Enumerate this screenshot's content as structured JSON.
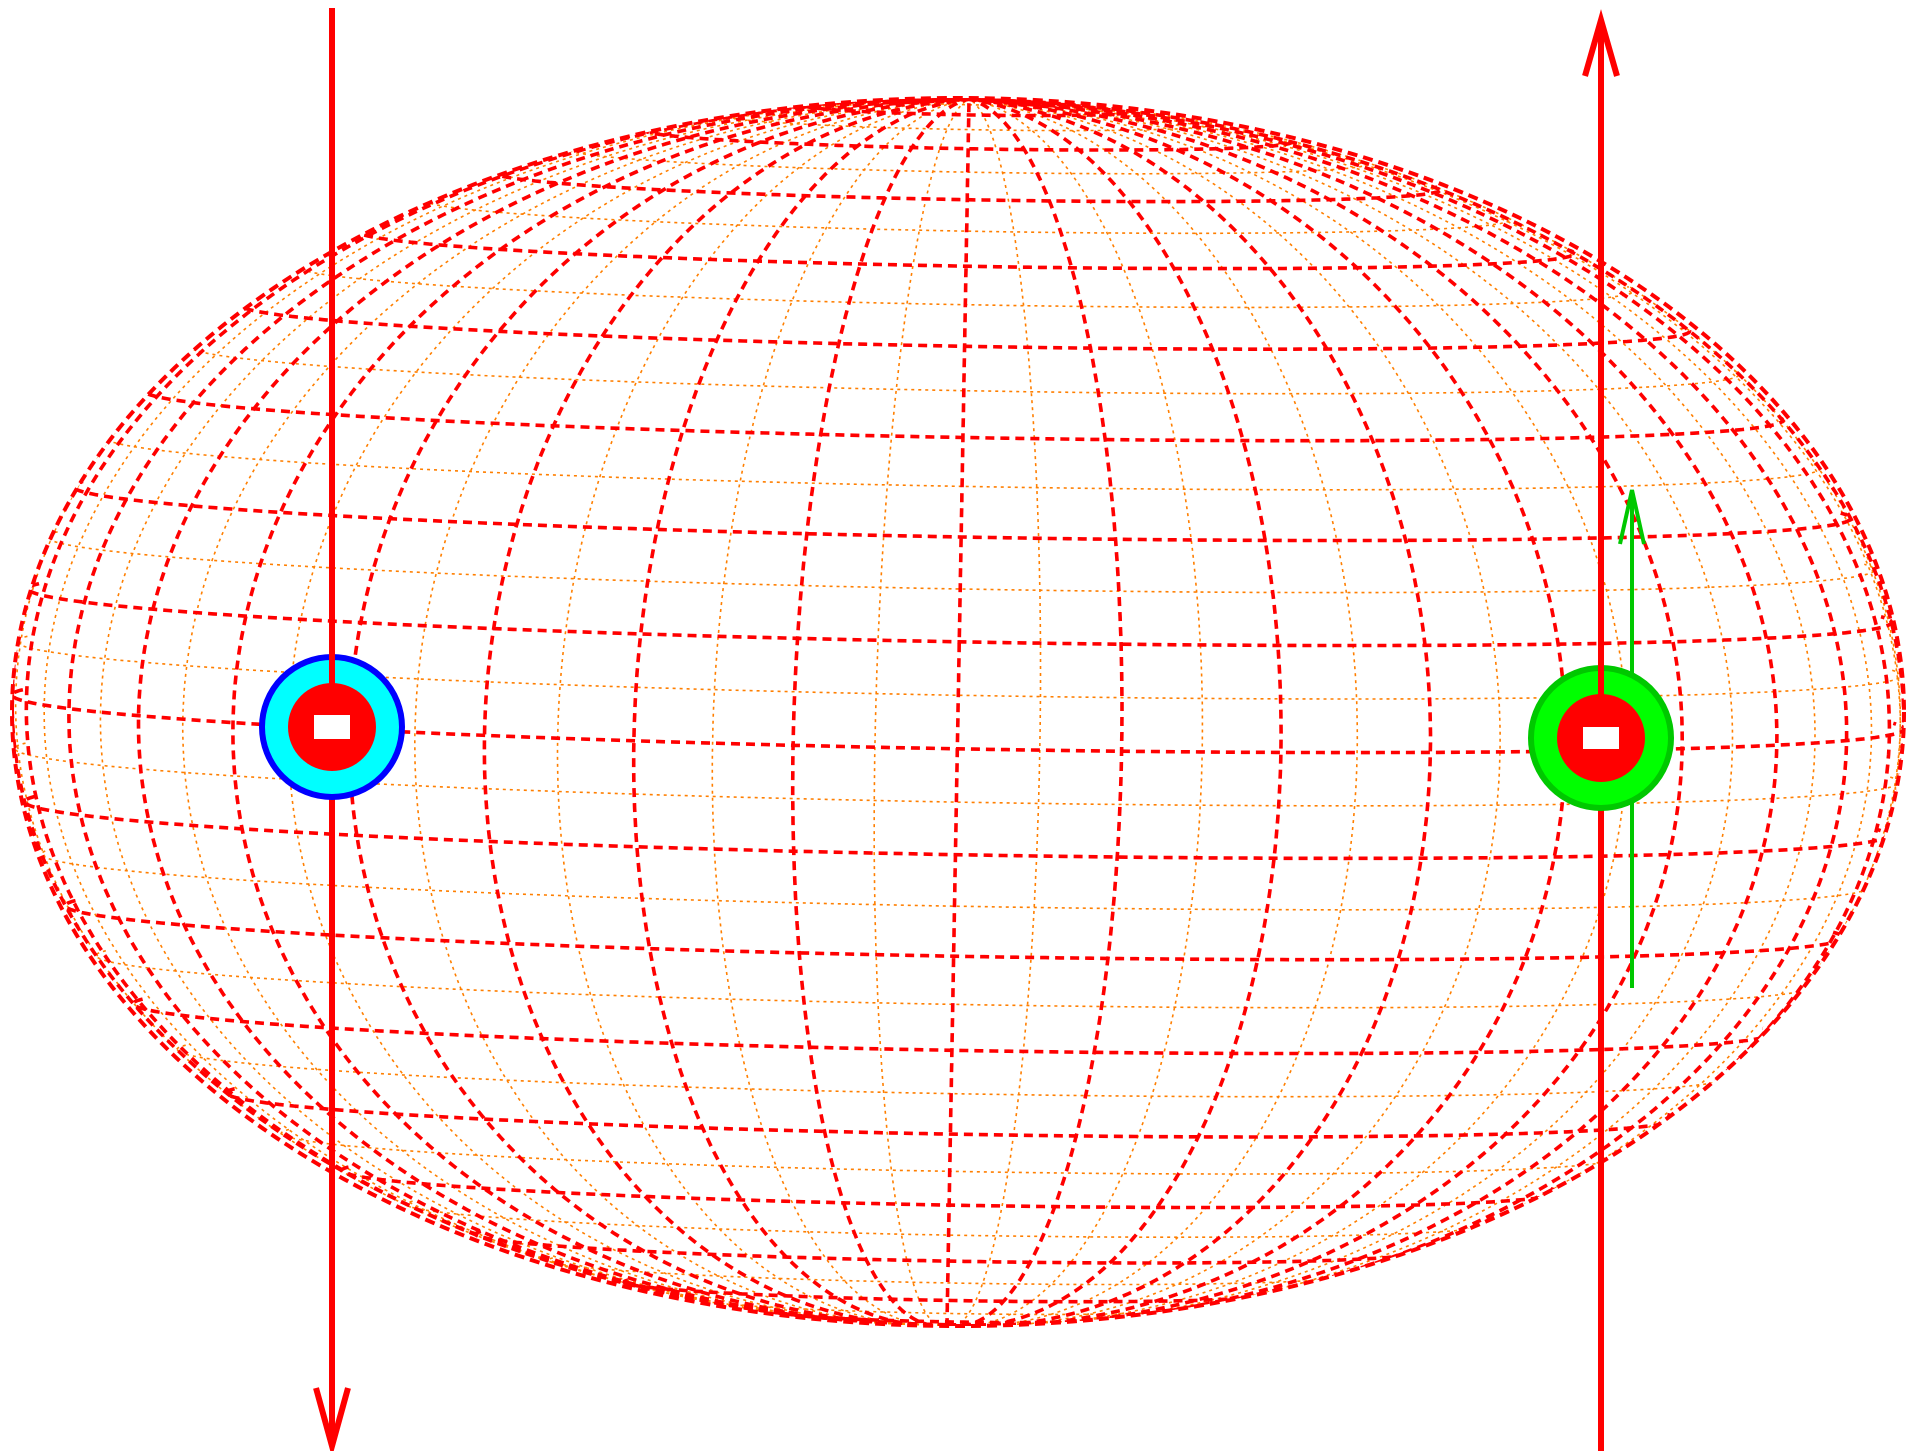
{
  "diagram": {
    "grid": {
      "major_color": "#ff0000",
      "minor_color": "#ff7f00"
    },
    "field_arrows": {
      "color": "#ff0000",
      "left_direction": "down",
      "right_direction": "up"
    },
    "charges": [
      {
        "name": "left-charge",
        "sign": "−",
        "outer_ring": "#0000ff",
        "outer_fill": "#00ffff",
        "core": "#ff0000",
        "mark": "#ffffff"
      },
      {
        "name": "right-charge",
        "sign": "−",
        "outer_ring": "#00c800",
        "outer_fill": "#00ff00",
        "core": "#ff0000",
        "mark": "#ffffff"
      }
    ],
    "velocity_arrow": {
      "color": "#00c800",
      "direction": "up"
    }
  }
}
